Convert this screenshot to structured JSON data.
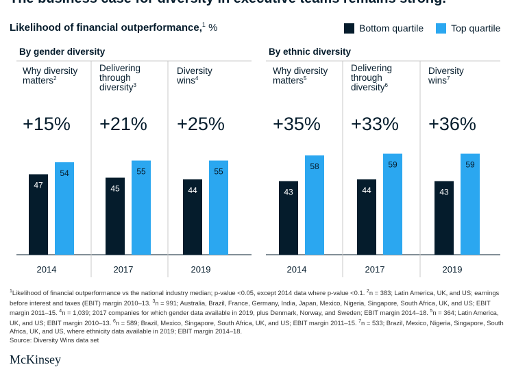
{
  "headline": "The business case for diversity in executive teams remains strong.",
  "subtitle": {
    "text": "Likelihood of financial outperformance,",
    "footnote": "1",
    "unit": "%"
  },
  "legend": [
    {
      "label": "Bottom quartile",
      "color": "#051c2c"
    },
    {
      "label": "Top quartile",
      "color": "#2ba7f0"
    }
  ],
  "colors": {
    "bottom": "#051c2c",
    "top": "#2ba7f0",
    "text": "#051c2c"
  },
  "chart_data": {
    "type": "bar",
    "series": [
      {
        "name": "Bottom quartile",
        "values": [
          47,
          45,
          44,
          43,
          44,
          43
        ]
      },
      {
        "name": "Top quartile",
        "values": [
          54,
          55,
          55,
          58,
          59,
          59
        ]
      }
    ],
    "panels": [
      {
        "title": "By gender diversity",
        "groups": [
          {
            "title": "Why diversity matters",
            "title_lines": [
              "Why diversity",
              "matters"
            ],
            "footnote": "2",
            "year": "2014",
            "delta": "+15%",
            "bottom": 47,
            "top": 54
          },
          {
            "title": "Delivering through diversity",
            "title_lines": [
              "Delivering",
              "through",
              "diversity"
            ],
            "footnote": "3",
            "year": "2017",
            "delta": "+21%",
            "bottom": 45,
            "top": 55
          },
          {
            "title": "Diversity wins",
            "title_lines": [
              "Diversity",
              "wins"
            ],
            "footnote": "4",
            "year": "2019",
            "delta": "+25%",
            "bottom": 44,
            "top": 55
          }
        ]
      },
      {
        "title": "By ethnic diversity",
        "groups": [
          {
            "title": "Why diversity matters",
            "title_lines": [
              "Why diversity",
              "matters"
            ],
            "footnote": "5",
            "year": "2014",
            "delta": "+35%",
            "bottom": 43,
            "top": 58
          },
          {
            "title": "Delivering through diversity",
            "title_lines": [
              "Delivering",
              "through",
              "diversity"
            ],
            "footnote": "6",
            "year": "2017",
            "delta": "+33%",
            "bottom": 44,
            "top": 59
          },
          {
            "title": "Diversity wins",
            "title_lines": [
              "Diversity",
              "wins"
            ],
            "footnote": "7",
            "year": "2019",
            "delta": "+36%",
            "bottom": 43,
            "top": 59
          }
        ]
      }
    ]
  },
  "footnotes": [
    {
      "sup": "1",
      "text": "Likelihood of financial outperformance vs the national industry median; p-value <0.05, except 2014 data where p-value <0.1. "
    },
    {
      "sup": "2",
      "text": "n = 383; Latin America, UK, and US; earnings before interest and taxes (EBIT) margin 2010–13. "
    },
    {
      "sup": "3",
      "text": "n = 991; Australia, Brazil, France, Germany, India, Japan, Mexico, Nigeria, Singapore, South Africa, UK, and US; EBIT margin 2011–15. "
    },
    {
      "sup": "4",
      "text": "n = 1,039; 2017 companies for which gender data available in 2019, plus Denmark, Norway, and Sweden;  EBIT margin 2014–18. "
    },
    {
      "sup": "5",
      "text": "n = 364; Latin America, UK, and US; EBIT margin 2010–13. "
    },
    {
      "sup": "6",
      "text": "n = 589; Brazil, Mexico, Singapore, South Africa, UK, and US; EBIT margin 2011–15. "
    },
    {
      "sup": "7",
      "text": "n = 533; Brazil, Mexico, Nigeria, Singapore, South Africa, UK, and US, where ethnicity data available in 2019; EBIT margin 2014–18."
    }
  ],
  "source": "Source: Diversity Wins data set",
  "logo": "McKinsey"
}
